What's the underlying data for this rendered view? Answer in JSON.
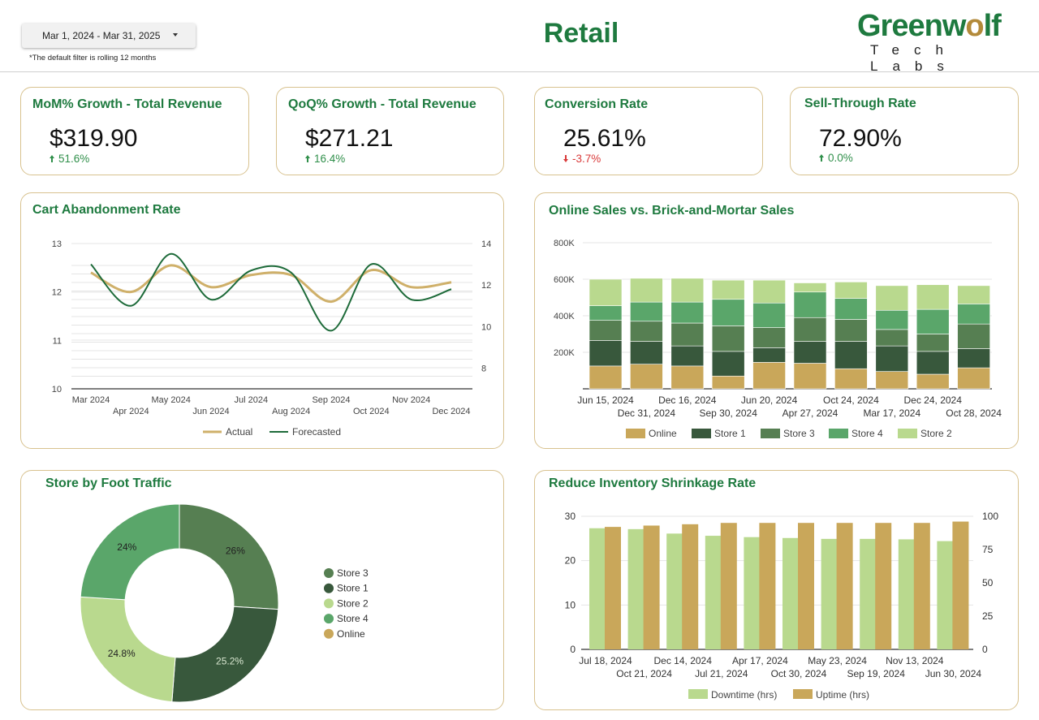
{
  "header": {
    "date_range": "Mar 1, 2024 - Mar 31, 2025",
    "filter_note": "*The default filter is rolling 12 months",
    "title": "Retail",
    "logo_word_start": "Greenw",
    "logo_word_o": "o",
    "logo_word_end": "lf",
    "logo_sub": "Tech Labs"
  },
  "colors": {
    "accent_green": "#1e7a3f",
    "card_border": "#d8c28f",
    "online": "#c9a75a",
    "store1": "#38583c",
    "store2": "#b9d98e",
    "store3": "#567f52",
    "store4": "#5aa66a",
    "actual_line": "#cfb06a",
    "forecast_line": "#1e6b3a",
    "downtime": "#b9d98e",
    "uptime": "#c9a75a",
    "positive": "#2f8f4a",
    "negative": "#d93a3a"
  },
  "kpis": [
    {
      "title": "MoM% Growth - Total Revenue",
      "value": "$319.90",
      "delta": "51.6%",
      "direction": "up"
    },
    {
      "title": "QoQ% Growth - Total Revenue",
      "value": "$271.21",
      "delta": "16.4%",
      "direction": "up"
    },
    {
      "title": "Conversion Rate",
      "value": "25.61%",
      "delta": "-3.7%",
      "direction": "down"
    },
    {
      "title": "Sell-Through Rate",
      "value": "72.90%",
      "delta": "0.0%",
      "direction": "up"
    }
  ],
  "chart_data": [
    {
      "type": "line",
      "title": "Cart Abandonment Rate",
      "x": [
        "Mar 2024",
        "Apr 2024",
        "May 2024",
        "Jun 2024",
        "Jul 2024",
        "Aug 2024",
        "Sep 2024",
        "Oct 2024",
        "Nov 2024",
        "Dec 2024"
      ],
      "y_left_ticks": [
        "13",
        "12",
        "11",
        "10"
      ],
      "y_right_ticks": [
        "14",
        "12",
        "10",
        "8"
      ],
      "ylim_left": [
        10,
        13
      ],
      "ylim_right": [
        7,
        14
      ],
      "series": [
        {
          "name": "Actual",
          "axis": "left",
          "values": [
            12.4,
            12.0,
            12.55,
            12.1,
            12.35,
            12.35,
            11.8,
            12.45,
            12.1,
            12.2
          ]
        },
        {
          "name": "Forecasted",
          "axis": "right",
          "values": [
            13.0,
            11.0,
            13.5,
            11.3,
            12.7,
            12.6,
            9.8,
            13.0,
            11.3,
            11.8
          ]
        }
      ]
    },
    {
      "type": "bar",
      "stacked": true,
      "title": "Online Sales vs. Brick-and-Mortar Sales",
      "categories": [
        "Jun 15, 2024",
        "Dec 31, 2024",
        "Dec 16, 2024",
        "Sep 30, 2024",
        "Jun 20, 2024",
        "Apr 27, 2024",
        "Oct 24, 2024",
        "Mar 17, 2024",
        "Dec 24, 2024",
        "Oct 28, 2024"
      ],
      "y_ticks": [
        "800K",
        "600K",
        "400K",
        "200K"
      ],
      "ylim": [
        0,
        800000
      ],
      "series": [
        {
          "name": "Online",
          "values": [
            125000,
            135000,
            125000,
            70000,
            145000,
            140000,
            110000,
            95000,
            80000,
            115000
          ]
        },
        {
          "name": "Store 1",
          "values": [
            140000,
            125000,
            110000,
            135000,
            80000,
            120000,
            150000,
            140000,
            125000,
            105000
          ]
        },
        {
          "name": "Store 3",
          "values": [
            110000,
            110000,
            125000,
            140000,
            110000,
            130000,
            120000,
            90000,
            95000,
            135000
          ]
        },
        {
          "name": "Store 4",
          "values": [
            80000,
            105000,
            115000,
            145000,
            135000,
            140000,
            115000,
            105000,
            135000,
            110000
          ]
        },
        {
          "name": "Store 2",
          "values": [
            145000,
            130000,
            130000,
            105000,
            125000,
            50000,
            90000,
            135000,
            135000,
            100000
          ]
        }
      ]
    },
    {
      "type": "pie",
      "donut": true,
      "title": "Store by Foot Traffic",
      "labels": [
        "Store 3",
        "Store 1",
        "Store 2",
        "Store 4",
        "Online"
      ],
      "values": [
        26,
        25.2,
        24.8,
        24,
        0
      ],
      "label_text": [
        "26%",
        "25.2%",
        "24.8%",
        "24%",
        ""
      ],
      "legend": "right"
    },
    {
      "type": "bar",
      "title": "Reduce Inventory Shrinkage Rate",
      "categories": [
        "Jul 18, 2024",
        "Oct 21, 2024",
        "Dec 14, 2024",
        "Jul 21, 2024",
        "Apr 17, 2024",
        "Oct 30, 2024",
        "May 23, 2024",
        "Sep 19, 2024",
        "Nov 13, 2024",
        "Jun 30, 2024"
      ],
      "y_left_ticks": [
        "30",
        "20",
        "10",
        "0"
      ],
      "y_right_ticks": [
        "100",
        "75",
        "50",
        "25",
        "0"
      ],
      "ylim_left": [
        0,
        30
      ],
      "ylim_right": [
        0,
        100
      ],
      "series": [
        {
          "name": "Downtime (hrs)",
          "axis": "left",
          "values": [
            27.3,
            27.1,
            26.1,
            25.6,
            25.3,
            25.1,
            24.9,
            24.9,
            24.8,
            24.4
          ]
        },
        {
          "name": "Uptime (hrs)",
          "axis": "right",
          "values": [
            92,
            93,
            94,
            95,
            95,
            95,
            95,
            95,
            95,
            96
          ]
        }
      ]
    }
  ]
}
